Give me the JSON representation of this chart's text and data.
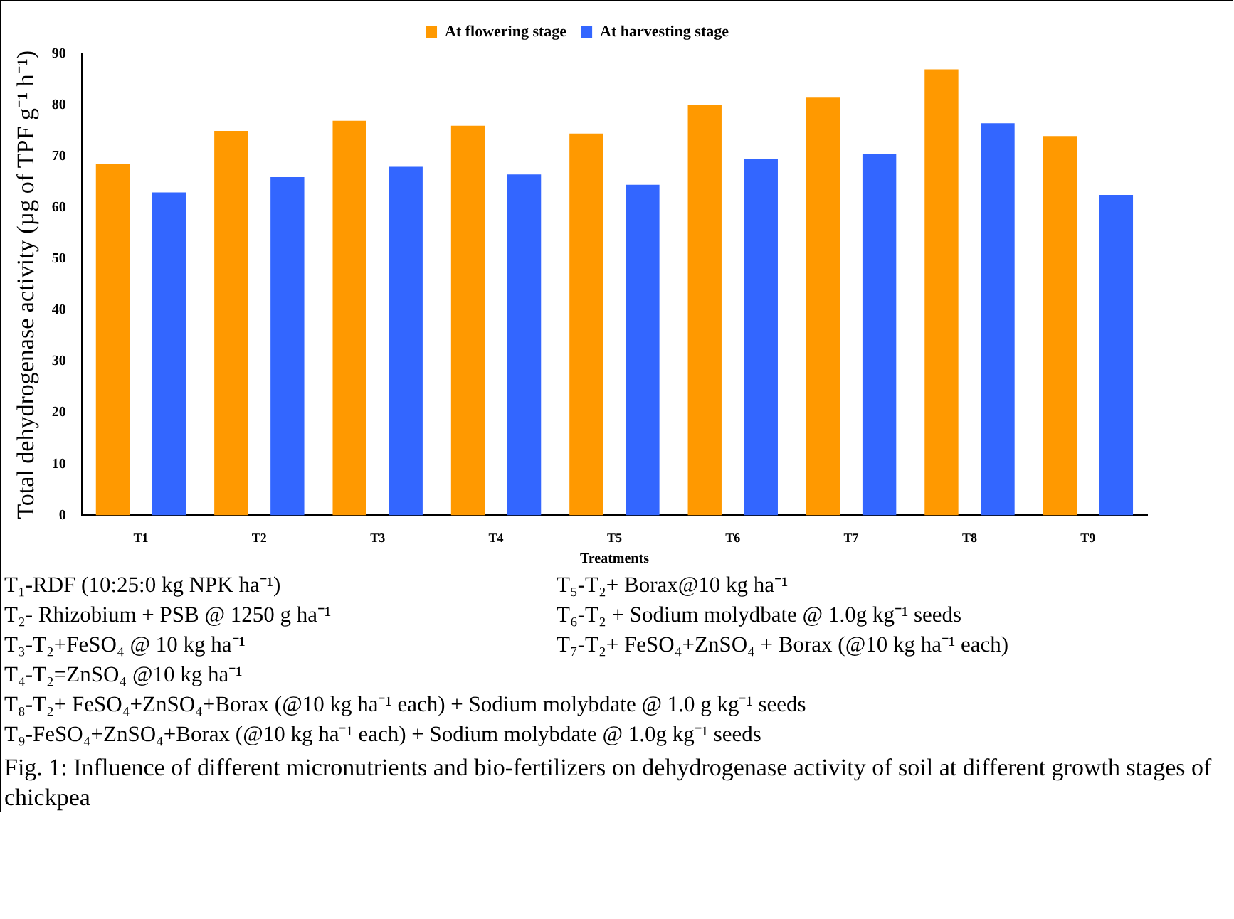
{
  "chart_data": {
    "type": "bar",
    "title": "Fig. 1: Influence of different micronutrients and bio-fertilizers on dehydrogenase activity of soil at different growth stages of chickpea",
    "xlabel": "Treatments",
    "ylabel": "Total dehydrogenase activity (µg of TPF g⁻¹ h⁻¹)",
    "categories": [
      "T1",
      "T2",
      "T3",
      "T4",
      "T5",
      "T6",
      "T7",
      "T8",
      "T9"
    ],
    "series": [
      {
        "name": "At flowering stage",
        "color": "#ff9900",
        "values": [
          68.5,
          75,
          77,
          76,
          74.5,
          80,
          81.5,
          87,
          74
        ]
      },
      {
        "name": "At harvesting stage",
        "color": "#3366ff",
        "values": [
          63,
          66,
          68,
          66.5,
          64.5,
          69.5,
          70.5,
          76.5,
          62.5
        ]
      }
    ],
    "ylim": [
      0,
      90
    ],
    "yticks": [
      0,
      10,
      20,
      30,
      40,
      50,
      60,
      70,
      80,
      90
    ],
    "grid": false,
    "legend": "top",
    "annotations": [
      "T₁-RDF (10:25:0 kg NPK ha⁻¹)",
      "T₂- Rhizobium + PSB @ 1250 g ha⁻¹",
      "T₃-T₂+FeSO₄ @ 10 kg ha⁻¹",
      "T₄-T₂=ZnSO₄ @10 kg ha⁻¹",
      "T₅-T₂+ Borax@10 kg ha⁻¹",
      "T₆-T₂ + Sodium molydbate @ 1.0g kg⁻¹ seeds",
      "T₇-T₂+ FeSO₄+ZnSO₄ + Borax (@10 kg ha⁻¹ each)",
      "T₈-T₂+ FeSO₄+ZnSO₄+Borax (@10 kg ha⁻¹ each) + Sodium molybdate @ 1.0 g kg⁻¹ seeds",
      "T₉-FeSO₄+ZnSO₄+Borax (@10 kg ha⁻¹ each) + Sodium molybdate @ 1.0g kg⁻¹ seeds"
    ]
  }
}
